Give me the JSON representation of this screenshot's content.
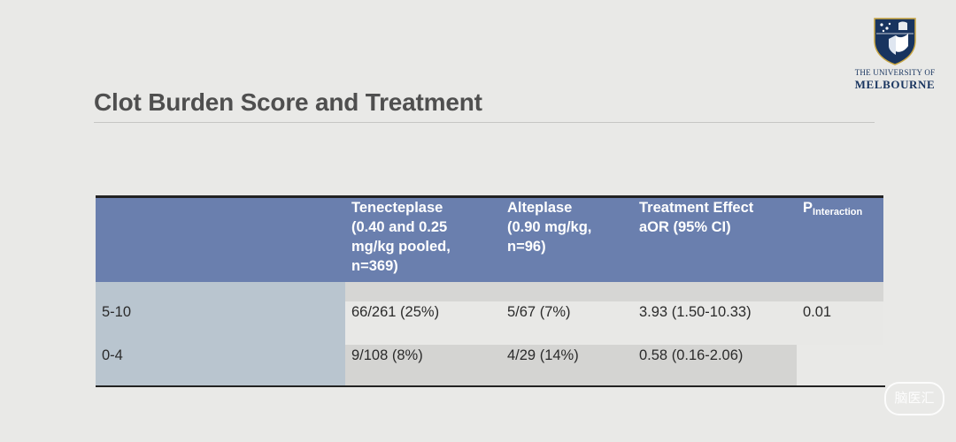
{
  "slide": {
    "title": "Clot Burden Score and Treatment"
  },
  "logo": {
    "line1": "THE UNIVERSITY OF",
    "line2": "MELBOURNE",
    "crest_icon": "university-crest-icon",
    "colors": {
      "navy": "#18345f",
      "gold": "#c9a642"
    }
  },
  "table": {
    "header": {
      "tenecteplase": [
        "Tenecteplase",
        "(0.40 and 0.25",
        "mg/kg pooled,",
        "n=369)"
      ],
      "alteplase": [
        "Alteplase",
        "(0.90 mg/kg,",
        "n=96)"
      ],
      "effect": [
        "Treatment Effect",
        "aOR (95% CI)"
      ],
      "p_main": "P",
      "p_sub": "Interaction"
    },
    "rows": [
      {
        "label": "5-10",
        "tenecteplase": "66/261 (25%)",
        "alteplase": "5/67 (7%)",
        "effect": "3.93 (1.50-10.33)",
        "p": "0.01"
      },
      {
        "label": "0-4",
        "tenecteplase": "9/108 (8%)",
        "alteplase": "4/29 (14%)",
        "effect": "0.58 (0.16-2.06)",
        "p": ""
      }
    ],
    "colors": {
      "header_bg": "#6a7fae",
      "stub_bg": "#b9c5cf"
    }
  },
  "watermark": {
    "text": "脑医汇"
  }
}
